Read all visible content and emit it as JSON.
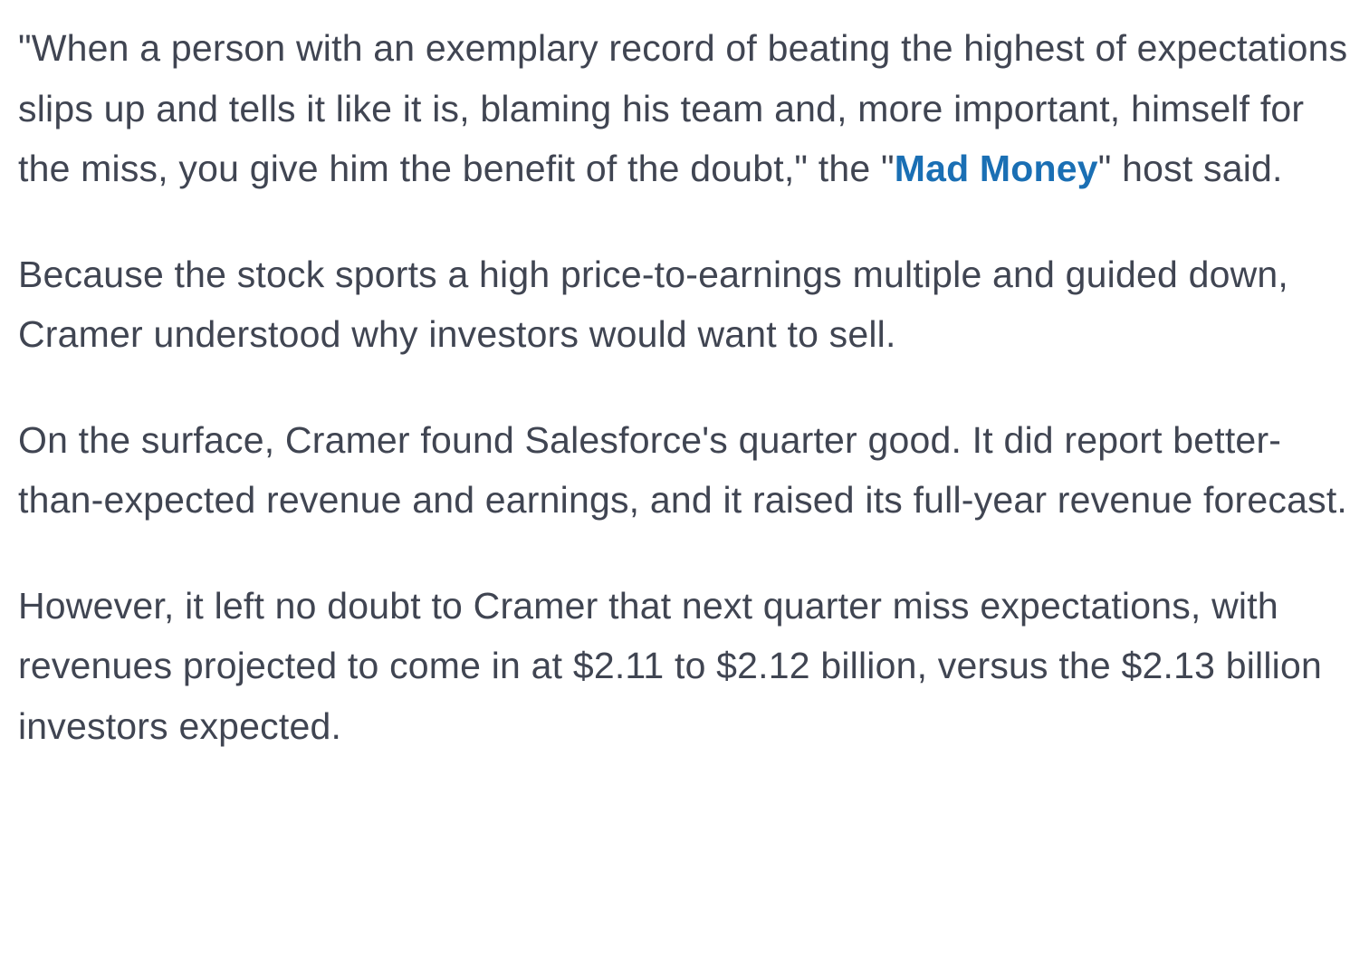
{
  "article": {
    "paragraphs": [
      {
        "before": "\"When a person with an exemplary record of beating the highest of expectations slips up and tells it like it is, blaming his team and, more important, himself for the miss, you give him the benefit of the doubt,\" the \"",
        "link": "Mad Money",
        "after": "\" host said."
      },
      {
        "text": "Because the stock sports a high price-to-earnings multiple and guided down, Cramer understood why investors would want to sell."
      },
      {
        "text": "On the surface, Cramer found Salesforce's quarter good. It did report better-than-expected revenue and earnings, and it raised its full-year revenue forecast."
      },
      {
        "text": "However, it left no doubt to Cramer that next quarter miss expectations, with revenues projected to come in at $2.11 to $2.12 billion, versus the $2.13 billion investors expected."
      }
    ]
  },
  "colors": {
    "text": "#404552",
    "link": "#1a6fb4",
    "background": "#ffffff"
  }
}
